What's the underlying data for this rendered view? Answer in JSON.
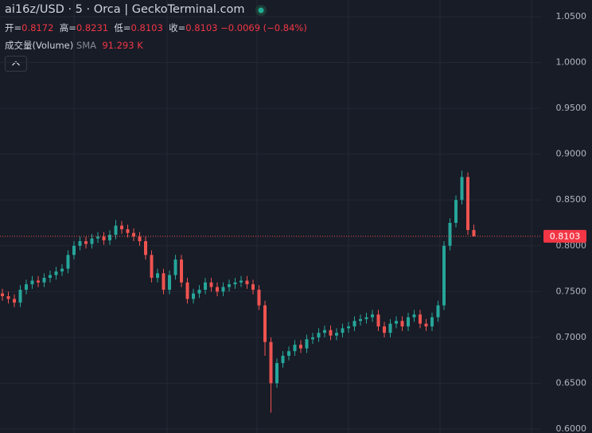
{
  "chart_data": {
    "type": "candlestick",
    "title": "ai16z/USD · 5 · Orca | GeckoTerminal.com",
    "legend": {
      "open_label": "开=",
      "open": 0.8172,
      "high_label": "高=",
      "high": 0.8231,
      "low_label": "低=",
      "low": 0.8103,
      "close_label": "收=",
      "close": 0.8103,
      "change": "−0.0069 (−0.84%)"
    },
    "volume_label": "成交量(Volume)",
    "volume_sma_label": "SMA",
    "volume_value": "91.293 K",
    "last_price": 0.8103,
    "up_color": "#26a69a",
    "down_color": "#ef5350",
    "ylim": [
      0.5957,
      1.0682
    ],
    "yticks": [
      {
        "value": 0.6,
        "label": "0.6000"
      },
      {
        "value": 0.65,
        "label": "0.6500"
      },
      {
        "value": 0.7,
        "label": "0.7000"
      },
      {
        "value": 0.75,
        "label": "0.7500"
      },
      {
        "value": 0.8,
        "label": "0.8000"
      },
      {
        "value": 0.85,
        "label": "0.8500"
      },
      {
        "value": 0.9,
        "label": "0.9000"
      },
      {
        "value": 0.95,
        "label": "0.9500"
      },
      {
        "value": 1.0,
        "label": "1.0000"
      },
      {
        "value": 1.05,
        "label": "1.0500"
      }
    ],
    "grid": true,
    "series": [
      {
        "open": [
          0.748,
          0.745,
          0.742,
          0.738,
          0.752,
          0.758,
          0.762,
          0.76,
          0.765,
          0.768,
          0.772,
          0.775,
          0.79,
          0.8,
          0.805,
          0.802,
          0.808,
          0.81,
          0.806,
          0.812,
          0.822,
          0.818,
          0.814,
          0.81,
          0.805,
          0.79,
          0.765,
          0.77,
          0.752,
          0.768,
          0.785,
          0.76,
          0.742,
          0.748,
          0.752,
          0.76,
          0.755,
          0.75,
          0.755,
          0.758,
          0.76,
          0.762,
          0.758,
          0.752,
          0.735,
          0.695,
          0.65,
          0.672,
          0.68,
          0.685,
          0.692,
          0.688,
          0.698,
          0.7,
          0.705,
          0.708,
          0.702,
          0.705,
          0.71,
          0.712,
          0.718,
          0.72,
          0.722,
          0.725,
          0.712,
          0.705,
          0.715,
          0.718,
          0.712,
          0.722,
          0.725,
          0.715,
          0.712,
          0.722,
          0.735,
          0.8,
          0.825,
          0.85,
          0.875,
          0.8172
        ],
        "high": [
          0.753,
          0.75,
          0.747,
          0.757,
          0.763,
          0.767,
          0.767,
          0.77,
          0.773,
          0.777,
          0.78,
          0.795,
          0.805,
          0.81,
          0.81,
          0.813,
          0.815,
          0.815,
          0.817,
          0.828,
          0.827,
          0.823,
          0.819,
          0.815,
          0.81,
          0.795,
          0.775,
          0.775,
          0.773,
          0.79,
          0.79,
          0.765,
          0.753,
          0.757,
          0.765,
          0.765,
          0.76,
          0.76,
          0.763,
          0.765,
          0.767,
          0.767,
          0.763,
          0.757,
          0.74,
          0.7,
          0.677,
          0.685,
          0.69,
          0.697,
          0.697,
          0.703,
          0.705,
          0.71,
          0.713,
          0.713,
          0.71,
          0.715,
          0.717,
          0.723,
          0.725,
          0.727,
          0.73,
          0.73,
          0.717,
          0.72,
          0.723,
          0.723,
          0.727,
          0.73,
          0.73,
          0.72,
          0.727,
          0.74,
          0.805,
          0.83,
          0.855,
          0.882,
          0.88,
          0.8231
        ],
        "low": [
          0.74,
          0.737,
          0.733,
          0.733,
          0.747,
          0.753,
          0.755,
          0.755,
          0.76,
          0.763,
          0.767,
          0.77,
          0.785,
          0.795,
          0.797,
          0.797,
          0.803,
          0.801,
          0.801,
          0.807,
          0.813,
          0.809,
          0.805,
          0.8,
          0.785,
          0.76,
          0.76,
          0.747,
          0.747,
          0.763,
          0.755,
          0.737,
          0.737,
          0.743,
          0.747,
          0.75,
          0.745,
          0.745,
          0.75,
          0.753,
          0.755,
          0.753,
          0.747,
          0.73,
          0.68,
          0.618,
          0.645,
          0.667,
          0.675,
          0.68,
          0.683,
          0.683,
          0.693,
          0.695,
          0.7,
          0.697,
          0.697,
          0.7,
          0.705,
          0.707,
          0.713,
          0.715,
          0.717,
          0.707,
          0.7,
          0.7,
          0.71,
          0.707,
          0.707,
          0.717,
          0.71,
          0.707,
          0.707,
          0.717,
          0.73,
          0.795,
          0.82,
          0.845,
          0.812,
          0.8103
        ],
        "close": [
          0.745,
          0.742,
          0.738,
          0.752,
          0.758,
          0.762,
          0.76,
          0.765,
          0.768,
          0.772,
          0.775,
          0.79,
          0.8,
          0.805,
          0.802,
          0.808,
          0.81,
          0.806,
          0.812,
          0.822,
          0.818,
          0.814,
          0.81,
          0.805,
          0.79,
          0.765,
          0.77,
          0.752,
          0.768,
          0.785,
          0.76,
          0.742,
          0.748,
          0.752,
          0.76,
          0.755,
          0.75,
          0.755,
          0.758,
          0.76,
          0.762,
          0.758,
          0.752,
          0.735,
          0.695,
          0.65,
          0.672,
          0.68,
          0.685,
          0.692,
          0.688,
          0.698,
          0.7,
          0.705,
          0.708,
          0.702,
          0.705,
          0.71,
          0.712,
          0.718,
          0.72,
          0.722,
          0.725,
          0.712,
          0.705,
          0.715,
          0.718,
          0.712,
          0.722,
          0.725,
          0.715,
          0.712,
          0.722,
          0.735,
          0.8,
          0.825,
          0.85,
          0.875,
          0.8172,
          0.8103
        ]
      }
    ]
  }
}
